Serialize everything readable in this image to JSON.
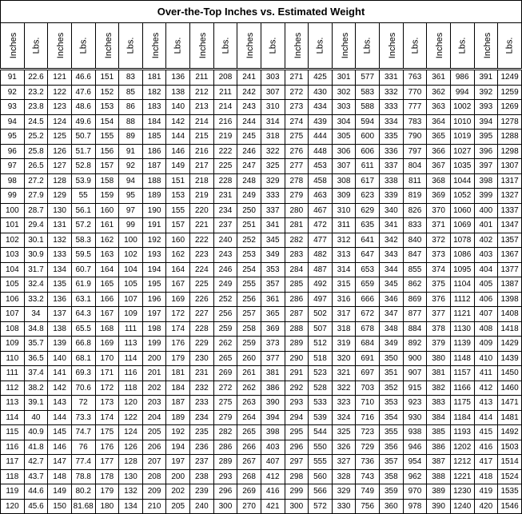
{
  "title": "Over-the-Top Inches vs. Estimated Weight",
  "header_labels": [
    "Inches",
    "Lbs."
  ],
  "header_pairs": 11,
  "title_fontsize": 13,
  "header_fontsize": 11,
  "cell_fontsize": 10,
  "border_color": "#000000",
  "background_color": "#ffffff",
  "rows": [
    [
      91,
      22.6,
      121,
      46.6,
      151,
      83,
      181,
      136,
      211,
      208,
      241,
      303,
      271,
      425,
      301,
      577,
      331,
      763,
      361,
      986,
      391,
      1249
    ],
    [
      92,
      23.2,
      122,
      47.6,
      152,
      85,
      182,
      138,
      212,
      211,
      242,
      307,
      272,
      430,
      302,
      583,
      332,
      770,
      362,
      994,
      392,
      1259
    ],
    [
      93,
      23.8,
      123,
      48.6,
      153,
      86,
      183,
      140,
      213,
      214,
      243,
      310,
      273,
      434,
      303,
      588,
      333,
      777,
      363,
      1002,
      393,
      1269
    ],
    [
      94,
      24.5,
      124,
      49.6,
      154,
      88,
      184,
      142,
      214,
      216,
      244,
      314,
      274,
      439,
      304,
      594,
      334,
      783,
      364,
      1010,
      394,
      1278
    ],
    [
      95,
      25.2,
      125,
      50.7,
      155,
      89,
      185,
      144,
      215,
      219,
      245,
      318,
      275,
      444,
      305,
      600,
      335,
      790,
      365,
      1019,
      395,
      1288
    ],
    [
      96,
      25.8,
      126,
      51.7,
      156,
      91,
      186,
      146,
      216,
      222,
      246,
      322,
      276,
      448,
      306,
      606,
      336,
      797,
      366,
      1027,
      396,
      1298
    ],
    [
      97,
      26.5,
      127,
      52.8,
      157,
      92,
      187,
      149,
      217,
      225,
      247,
      325,
      277,
      453,
      307,
      611,
      337,
      804,
      367,
      1035,
      397,
      1307
    ],
    [
      98,
      27.2,
      128,
      53.9,
      158,
      94,
      188,
      151,
      218,
      228,
      248,
      329,
      278,
      458,
      308,
      617,
      338,
      811,
      368,
      1044,
      398,
      1317
    ],
    [
      99,
      27.9,
      129,
      55,
      159,
      95,
      189,
      153,
      219,
      231,
      249,
      333,
      279,
      463,
      309,
      623,
      339,
      819,
      369,
      1052,
      399,
      1327
    ],
    [
      100,
      28.7,
      130,
      56.1,
      160,
      97,
      190,
      155,
      220,
      234,
      250,
      337,
      280,
      467,
      310,
      629,
      340,
      826,
      370,
      1060,
      400,
      1337
    ],
    [
      101,
      29.4,
      131,
      57.2,
      161,
      99,
      191,
      157,
      221,
      237,
      251,
      341,
      281,
      472,
      311,
      635,
      341,
      833,
      371,
      1069,
      401,
      1347
    ],
    [
      102,
      30.1,
      132,
      58.3,
      162,
      100,
      192,
      160,
      222,
      240,
      252,
      345,
      282,
      477,
      312,
      641,
      342,
      840,
      372,
      1078,
      402,
      1357
    ],
    [
      103,
      30.9,
      133,
      59.5,
      163,
      102,
      193,
      162,
      223,
      243,
      253,
      349,
      283,
      482,
      313,
      647,
      343,
      847,
      373,
      1086,
      403,
      1367
    ],
    [
      104,
      31.7,
      134,
      60.7,
      164,
      104,
      194,
      164,
      224,
      246,
      254,
      353,
      284,
      487,
      314,
      653,
      344,
      855,
      374,
      1095,
      404,
      1377
    ],
    [
      105,
      32.4,
      135,
      61.9,
      165,
      105,
      195,
      167,
      225,
      249,
      255,
      357,
      285,
      492,
      315,
      659,
      345,
      862,
      375,
      1104,
      405,
      1387
    ],
    [
      106,
      33.2,
      136,
      63.1,
      166,
      107,
      196,
      169,
      226,
      252,
      256,
      361,
      286,
      497,
      316,
      666,
      346,
      869,
      376,
      1112,
      406,
      1398
    ],
    [
      107,
      34,
      137,
      64.3,
      167,
      109,
      197,
      172,
      227,
      256,
      257,
      365,
      287,
      502,
      317,
      672,
      347,
      877,
      377,
      1121,
      407,
      1408
    ],
    [
      108,
      34.8,
      138,
      65.5,
      168,
      111,
      198,
      174,
      228,
      259,
      258,
      369,
      288,
      507,
      318,
      678,
      348,
      884,
      378,
      1130,
      408,
      1418
    ],
    [
      109,
      35.7,
      139,
      66.8,
      169,
      113,
      199,
      176,
      229,
      262,
      259,
      373,
      289,
      512,
      319,
      684,
      349,
      892,
      379,
      1139,
      409,
      1429
    ],
    [
      110,
      36.5,
      140,
      68.1,
      170,
      114,
      200,
      179,
      230,
      265,
      260,
      377,
      290,
      518,
      320,
      691,
      350,
      900,
      380,
      1148,
      410,
      1439
    ],
    [
      111,
      37.4,
      141,
      69.3,
      171,
      116,
      201,
      181,
      231,
      269,
      261,
      381,
      291,
      523,
      321,
      697,
      351,
      907,
      381,
      1157,
      411,
      1450
    ],
    [
      112,
      38.2,
      142,
      70.6,
      172,
      118,
      202,
      184,
      232,
      272,
      262,
      386,
      292,
      528,
      322,
      703,
      352,
      915,
      382,
      1166,
      412,
      1460
    ],
    [
      113,
      39.1,
      143,
      72,
      173,
      120,
      203,
      187,
      233,
      275,
      263,
      390,
      293,
      533,
      323,
      710,
      353,
      923,
      383,
      1175,
      413,
      1471
    ],
    [
      114,
      40,
      144,
      73.3,
      174,
      122,
      204,
      189,
      234,
      279,
      264,
      394,
      294,
      539,
      324,
      716,
      354,
      930,
      384,
      1184,
      414,
      1481
    ],
    [
      115,
      40.9,
      145,
      74.7,
      175,
      124,
      205,
      192,
      235,
      282,
      265,
      398,
      295,
      544,
      325,
      723,
      355,
      938,
      385,
      1193,
      415,
      1492
    ],
    [
      116,
      41.8,
      146,
      76,
      176,
      126,
      206,
      194,
      236,
      286,
      266,
      403,
      296,
      550,
      326,
      729,
      356,
      946,
      386,
      1202,
      416,
      1503
    ],
    [
      117,
      42.7,
      147,
      77.4,
      177,
      128,
      207,
      197,
      237,
      289,
      267,
      407,
      297,
      555,
      327,
      736,
      357,
      954,
      387,
      1212,
      417,
      1514
    ],
    [
      118,
      43.7,
      148,
      78.8,
      178,
      130,
      208,
      200,
      238,
      293,
      268,
      412,
      298,
      560,
      328,
      743,
      358,
      962,
      388,
      1221,
      418,
      1524
    ],
    [
      119,
      44.6,
      149,
      80.2,
      179,
      132,
      209,
      202,
      239,
      296,
      269,
      416,
      299,
      566,
      329,
      749,
      359,
      970,
      389,
      1230,
      419,
      1535
    ],
    [
      120,
      45.6,
      150,
      81.68,
      180,
      134,
      210,
      205,
      240,
      300,
      270,
      421,
      300,
      572,
      330,
      756,
      360,
      978,
      390,
      1240,
      420,
      1546
    ]
  ]
}
